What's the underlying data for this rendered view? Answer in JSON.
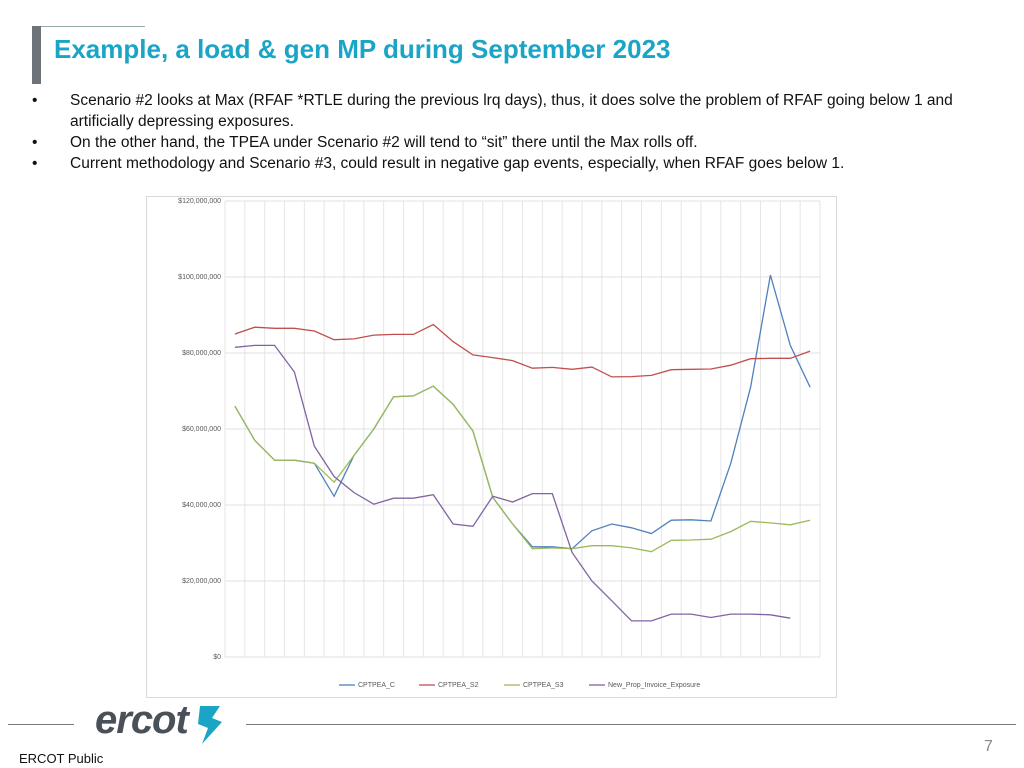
{
  "title": "Example, a load & gen MP during September 2023",
  "bullets": [
    "Scenario #2 looks at Max (RFAF *RTLE during the previous lrq days), thus, it does solve the problem of RFAF going below 1 and artificially depressing exposures.",
    "On the other hand, the TPEA under Scenario #2 will tend to “sit” there until the Max rolls off.",
    "Current methodology and Scenario #3, could result in negative gap events, especially, when RFAF goes below 1."
  ],
  "chart_data": {
    "type": "line",
    "categories": [
      null,
      null,
      null,
      null,
      null,
      null,
      null,
      null,
      null,
      null,
      null,
      null,
      null,
      null,
      null,
      null,
      null,
      null,
      null,
      null,
      null,
      null,
      null,
      null,
      null,
      null,
      null,
      null,
      null,
      null
    ],
    "series": [
      {
        "name": "CPTPEA_C",
        "color": "#4f81bd",
        "values": [
          66000000,
          57000000,
          51800000,
          51800000,
          51000000,
          42300000,
          53000000,
          60000000,
          68500000,
          68700000,
          71300000,
          66500000,
          59500000,
          42000000,
          35000000,
          29000000,
          29000000,
          28500000,
          33200000,
          35000000,
          34000000,
          32500000,
          36000000,
          36100000,
          35800000,
          51000000,
          71000000,
          100500000,
          82000000,
          71000000
        ]
      },
      {
        "name": "CPTPEA_S2",
        "color": "#c0504d",
        "values": [
          85000000,
          86800000,
          86500000,
          86500000,
          85800000,
          83500000,
          83700000,
          84700000,
          84900000,
          84900000,
          87500000,
          83000000,
          79500000,
          78800000,
          78000000,
          76000000,
          76200000,
          75700000,
          76300000,
          73700000,
          73800000,
          74100000,
          75600000,
          75700000,
          75800000,
          76800000,
          78500000,
          78600000,
          78600000,
          80500000
        ]
      },
      {
        "name": "CPTPEA_S3",
        "color": "#9bbb59",
        "values": [
          66000000,
          57000000,
          51800000,
          51800000,
          51000000,
          46000000,
          53000000,
          60000000,
          68500000,
          68700000,
          71300000,
          66500000,
          59500000,
          42000000,
          35000000,
          28500000,
          28700000,
          28500000,
          29300000,
          29300000,
          28700000,
          27700000,
          30700000,
          30800000,
          31000000,
          33000000,
          35700000,
          35300000,
          34800000,
          36000000
        ]
      },
      {
        "name": "New_Prop_Invoice_Exposure",
        "color": "#8064a2",
        "values": [
          81500000,
          82000000,
          82000000,
          75000000,
          55500000,
          47500000,
          43300000,
          40200000,
          41800000,
          41800000,
          42700000,
          35000000,
          34400000,
          42300000,
          40800000,
          43000000,
          43000000,
          27500000,
          20000000,
          14800000,
          9500000,
          9500000,
          11300000,
          11300000,
          10400000,
          11300000,
          11300000,
          11100000,
          10200000,
          null
        ]
      }
    ],
    "ylim": [
      0,
      120000000
    ],
    "yticks": [
      {
        "value": 0,
        "label": "$0"
      },
      {
        "value": 20000000,
        "label": "$20,000,000"
      },
      {
        "value": 40000000,
        "label": "$40,000,000"
      },
      {
        "value": 60000000,
        "label": "$60,000,000"
      },
      {
        "value": 80000000,
        "label": "$80,000,000"
      },
      {
        "value": 100000000,
        "label": "$100,000,000"
      },
      {
        "value": 120000000,
        "label": "$120,000,000"
      }
    ],
    "grid": true,
    "legend": "bottom"
  },
  "footer": {
    "logo": "ercot",
    "page": "7",
    "label": "ERCOT Public"
  }
}
